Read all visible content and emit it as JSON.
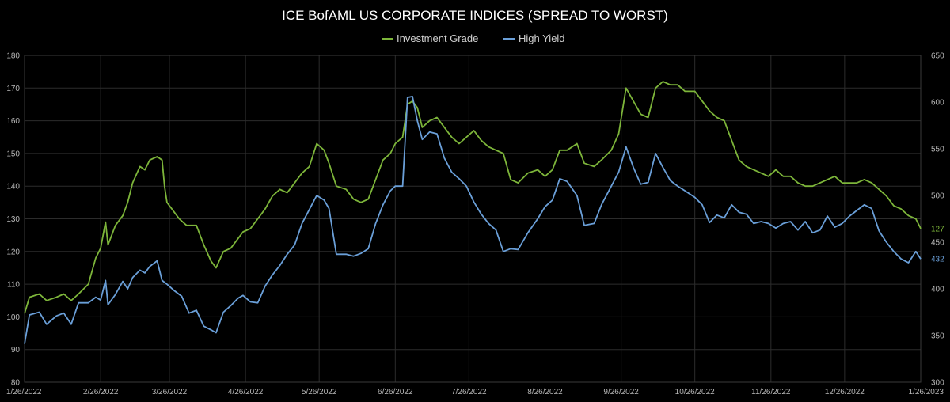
{
  "chart_data": {
    "type": "line",
    "title": "ICE BofAML US CORPORATE INDICES (SPREAD TO WORST)",
    "x_ticks": [
      "1/26/2022",
      "2/26/2022",
      "3/26/2022",
      "4/26/2022",
      "5/26/2022",
      "6/26/2022",
      "7/26/2022",
      "8/26/2022",
      "9/26/2022",
      "10/26/2022",
      "11/26/2022",
      "12/26/2022",
      "1/26/2023"
    ],
    "y_left": {
      "min": 80,
      "max": 180,
      "ticks": [
        80,
        90,
        100,
        110,
        120,
        130,
        140,
        150,
        160,
        170,
        180
      ]
    },
    "y_right": {
      "min": 300,
      "max": 650,
      "ticks": [
        300,
        350,
        400,
        450,
        500,
        550,
        600,
        650
      ]
    },
    "grid": true,
    "legend_position": "top-center",
    "series": [
      {
        "name": "Investment Grade",
        "axis": "left",
        "color": "#7db53a",
        "end_label": "127",
        "points": [
          [
            "2022-01-26",
            101
          ],
          [
            "2022-01-28",
            106
          ],
          [
            "2022-02-01",
            107
          ],
          [
            "2022-02-04",
            105
          ],
          [
            "2022-02-08",
            106
          ],
          [
            "2022-02-11",
            107
          ],
          [
            "2022-02-14",
            105
          ],
          [
            "2022-02-17",
            107
          ],
          [
            "2022-02-21",
            110
          ],
          [
            "2022-02-24",
            118
          ],
          [
            "2022-02-26",
            121
          ],
          [
            "2022-02-28",
            129
          ],
          [
            "2022-03-01",
            122
          ],
          [
            "2022-03-04",
            128
          ],
          [
            "2022-03-07",
            131
          ],
          [
            "2022-03-09",
            135
          ],
          [
            "2022-03-11",
            141
          ],
          [
            "2022-03-14",
            146
          ],
          [
            "2022-03-16",
            145
          ],
          [
            "2022-03-18",
            148
          ],
          [
            "2022-03-21",
            149
          ],
          [
            "2022-03-23",
            148
          ],
          [
            "2022-03-24",
            140
          ],
          [
            "2022-03-25",
            135
          ],
          [
            "2022-03-28",
            132
          ],
          [
            "2022-03-30",
            130
          ],
          [
            "2022-04-02",
            128
          ],
          [
            "2022-04-06",
            128
          ],
          [
            "2022-04-09",
            122
          ],
          [
            "2022-04-12",
            117
          ],
          [
            "2022-04-14",
            115
          ],
          [
            "2022-04-17",
            120
          ],
          [
            "2022-04-20",
            121
          ],
          [
            "2022-04-23",
            124
          ],
          [
            "2022-04-25",
            126
          ],
          [
            "2022-04-28",
            127
          ],
          [
            "2022-05-01",
            130
          ],
          [
            "2022-05-04",
            133
          ],
          [
            "2022-05-07",
            137
          ],
          [
            "2022-05-10",
            139
          ],
          [
            "2022-05-13",
            138
          ],
          [
            "2022-05-16",
            141
          ],
          [
            "2022-05-19",
            144
          ],
          [
            "2022-05-22",
            146
          ],
          [
            "2022-05-25",
            153
          ],
          [
            "2022-05-28",
            151
          ],
          [
            "2022-05-30",
            147
          ],
          [
            "2022-06-02",
            140
          ],
          [
            "2022-06-06",
            139
          ],
          [
            "2022-06-09",
            136
          ],
          [
            "2022-06-12",
            135
          ],
          [
            "2022-06-15",
            136
          ],
          [
            "2022-06-18",
            142
          ],
          [
            "2022-06-21",
            148
          ],
          [
            "2022-06-24",
            150
          ],
          [
            "2022-06-26",
            153
          ],
          [
            "2022-06-29",
            155
          ],
          [
            "2022-07-01",
            165
          ],
          [
            "2022-07-03",
            166
          ],
          [
            "2022-07-05",
            164
          ],
          [
            "2022-07-07",
            158
          ],
          [
            "2022-07-10",
            160
          ],
          [
            "2022-07-13",
            161
          ],
          [
            "2022-07-16",
            158
          ],
          [
            "2022-07-19",
            155
          ],
          [
            "2022-07-22",
            153
          ],
          [
            "2022-07-25",
            155
          ],
          [
            "2022-07-28",
            157
          ],
          [
            "2022-07-31",
            154
          ],
          [
            "2022-08-03",
            152
          ],
          [
            "2022-08-06",
            151
          ],
          [
            "2022-08-09",
            150
          ],
          [
            "2022-08-12",
            142
          ],
          [
            "2022-08-15",
            141
          ],
          [
            "2022-08-19",
            144
          ],
          [
            "2022-08-23",
            145
          ],
          [
            "2022-08-26",
            143
          ],
          [
            "2022-08-29",
            145
          ],
          [
            "2022-09-01",
            151
          ],
          [
            "2022-09-04",
            151
          ],
          [
            "2022-09-08",
            153
          ],
          [
            "2022-09-11",
            147
          ],
          [
            "2022-09-15",
            146
          ],
          [
            "2022-09-18",
            148
          ],
          [
            "2022-09-22",
            151
          ],
          [
            "2022-09-25",
            156
          ],
          [
            "2022-09-28",
            170
          ],
          [
            "2022-10-01",
            166
          ],
          [
            "2022-10-04",
            162
          ],
          [
            "2022-10-07",
            161
          ],
          [
            "2022-10-10",
            170
          ],
          [
            "2022-10-13",
            172
          ],
          [
            "2022-10-16",
            171
          ],
          [
            "2022-10-19",
            171
          ],
          [
            "2022-10-22",
            169
          ],
          [
            "2022-10-26",
            169
          ],
          [
            "2022-10-29",
            166
          ],
          [
            "2022-11-01",
            163
          ],
          [
            "2022-11-04",
            161
          ],
          [
            "2022-11-07",
            160
          ],
          [
            "2022-11-10",
            154
          ],
          [
            "2022-11-13",
            148
          ],
          [
            "2022-11-16",
            146
          ],
          [
            "2022-11-19",
            145
          ],
          [
            "2022-11-22",
            144
          ],
          [
            "2022-11-25",
            143
          ],
          [
            "2022-11-28",
            145
          ],
          [
            "2022-12-01",
            143
          ],
          [
            "2022-12-04",
            143
          ],
          [
            "2022-12-07",
            141
          ],
          [
            "2022-12-10",
            140
          ],
          [
            "2022-12-13",
            140
          ],
          [
            "2022-12-16",
            141
          ],
          [
            "2022-12-19",
            142
          ],
          [
            "2022-12-22",
            143
          ],
          [
            "2022-12-25",
            141
          ],
          [
            "2022-12-28",
            141
          ],
          [
            "2022-12-31",
            141
          ],
          [
            "2023-01-03",
            142
          ],
          [
            "2023-01-06",
            141
          ],
          [
            "2023-01-09",
            139
          ],
          [
            "2023-01-12",
            137
          ],
          [
            "2023-01-15",
            134
          ],
          [
            "2023-01-18",
            133
          ],
          [
            "2023-01-21",
            131
          ],
          [
            "2023-01-24",
            130
          ],
          [
            "2023-01-26",
            127
          ]
        ]
      },
      {
        "name": "High Yield",
        "axis": "right",
        "color": "#6a9fd8",
        "end_label": "432",
        "points": [
          [
            "2022-01-26",
            341
          ],
          [
            "2022-01-28",
            372
          ],
          [
            "2022-02-01",
            375
          ],
          [
            "2022-02-04",
            362
          ],
          [
            "2022-02-08",
            371
          ],
          [
            "2022-02-11",
            374
          ],
          [
            "2022-02-14",
            362
          ],
          [
            "2022-02-17",
            385
          ],
          [
            "2022-02-21",
            385
          ],
          [
            "2022-02-24",
            391
          ],
          [
            "2022-02-26",
            388
          ],
          [
            "2022-02-28",
            409
          ],
          [
            "2022-03-01",
            383
          ],
          [
            "2022-03-04",
            394
          ],
          [
            "2022-03-07",
            408
          ],
          [
            "2022-03-09",
            400
          ],
          [
            "2022-03-11",
            412
          ],
          [
            "2022-03-14",
            420
          ],
          [
            "2022-03-16",
            417
          ],
          [
            "2022-03-18",
            424
          ],
          [
            "2022-03-21",
            430
          ],
          [
            "2022-03-23",
            409
          ],
          [
            "2022-03-25",
            405
          ],
          [
            "2022-03-28",
            398
          ],
          [
            "2022-03-31",
            392
          ],
          [
            "2022-04-03",
            374
          ],
          [
            "2022-04-06",
            377
          ],
          [
            "2022-04-09",
            360
          ],
          [
            "2022-04-12",
            356
          ],
          [
            "2022-04-14",
            353
          ],
          [
            "2022-04-17",
            375
          ],
          [
            "2022-04-20",
            382
          ],
          [
            "2022-04-23",
            390
          ],
          [
            "2022-04-25",
            393
          ],
          [
            "2022-04-28",
            386
          ],
          [
            "2022-05-01",
            385
          ],
          [
            "2022-05-04",
            403
          ],
          [
            "2022-05-07",
            415
          ],
          [
            "2022-05-10",
            425
          ],
          [
            "2022-05-13",
            437
          ],
          [
            "2022-05-16",
            447
          ],
          [
            "2022-05-19",
            470
          ],
          [
            "2022-05-22",
            485
          ],
          [
            "2022-05-25",
            500
          ],
          [
            "2022-05-28",
            495
          ],
          [
            "2022-05-30",
            486
          ],
          [
            "2022-06-02",
            437
          ],
          [
            "2022-06-06",
            437
          ],
          [
            "2022-06-09",
            435
          ],
          [
            "2022-06-12",
            438
          ],
          [
            "2022-06-15",
            443
          ],
          [
            "2022-06-18",
            470
          ],
          [
            "2022-06-21",
            490
          ],
          [
            "2022-06-24",
            505
          ],
          [
            "2022-06-26",
            510
          ],
          [
            "2022-06-29",
            510
          ],
          [
            "2022-07-01",
            605
          ],
          [
            "2022-07-03",
            606
          ],
          [
            "2022-07-05",
            580
          ],
          [
            "2022-07-07",
            560
          ],
          [
            "2022-07-10",
            568
          ],
          [
            "2022-07-13",
            566
          ],
          [
            "2022-07-16",
            540
          ],
          [
            "2022-07-19",
            525
          ],
          [
            "2022-07-22",
            518
          ],
          [
            "2022-07-25",
            510
          ],
          [
            "2022-07-28",
            493
          ],
          [
            "2022-07-31",
            480
          ],
          [
            "2022-08-03",
            470
          ],
          [
            "2022-08-06",
            463
          ],
          [
            "2022-08-09",
            440
          ],
          [
            "2022-08-12",
            443
          ],
          [
            "2022-08-15",
            442
          ],
          [
            "2022-08-19",
            460
          ],
          [
            "2022-08-23",
            475
          ],
          [
            "2022-08-26",
            488
          ],
          [
            "2022-08-29",
            495
          ],
          [
            "2022-09-01",
            518
          ],
          [
            "2022-09-04",
            515
          ],
          [
            "2022-09-08",
            500
          ],
          [
            "2022-09-11",
            468
          ],
          [
            "2022-09-15",
            470
          ],
          [
            "2022-09-18",
            490
          ],
          [
            "2022-09-22",
            510
          ],
          [
            "2022-09-25",
            525
          ],
          [
            "2022-09-28",
            552
          ],
          [
            "2022-10-01",
            530
          ],
          [
            "2022-10-04",
            512
          ],
          [
            "2022-10-07",
            514
          ],
          [
            "2022-10-10",
            545
          ],
          [
            "2022-10-13",
            530
          ],
          [
            "2022-10-16",
            516
          ],
          [
            "2022-10-19",
            510
          ],
          [
            "2022-10-22",
            505
          ],
          [
            "2022-10-26",
            498
          ],
          [
            "2022-10-29",
            490
          ],
          [
            "2022-11-01",
            471
          ],
          [
            "2022-11-04",
            479
          ],
          [
            "2022-11-07",
            476
          ],
          [
            "2022-11-10",
            490
          ],
          [
            "2022-11-13",
            482
          ],
          [
            "2022-11-16",
            480
          ],
          [
            "2022-11-19",
            470
          ],
          [
            "2022-11-22",
            472
          ],
          [
            "2022-11-25",
            470
          ],
          [
            "2022-11-28",
            465
          ],
          [
            "2022-12-01",
            470
          ],
          [
            "2022-12-04",
            472
          ],
          [
            "2022-12-07",
            463
          ],
          [
            "2022-12-10",
            472
          ],
          [
            "2022-12-13",
            460
          ],
          [
            "2022-12-16",
            463
          ],
          [
            "2022-12-19",
            478
          ],
          [
            "2022-12-22",
            466
          ],
          [
            "2022-12-25",
            470
          ],
          [
            "2022-12-28",
            478
          ],
          [
            "2022-12-31",
            484
          ],
          [
            "2023-01-03",
            490
          ],
          [
            "2023-01-06",
            486
          ],
          [
            "2023-01-09",
            462
          ],
          [
            "2023-01-12",
            450
          ],
          [
            "2023-01-15",
            440
          ],
          [
            "2023-01-18",
            432
          ],
          [
            "2023-01-21",
            428
          ],
          [
            "2023-01-24",
            440
          ],
          [
            "2023-01-26",
            432
          ]
        ]
      }
    ]
  }
}
